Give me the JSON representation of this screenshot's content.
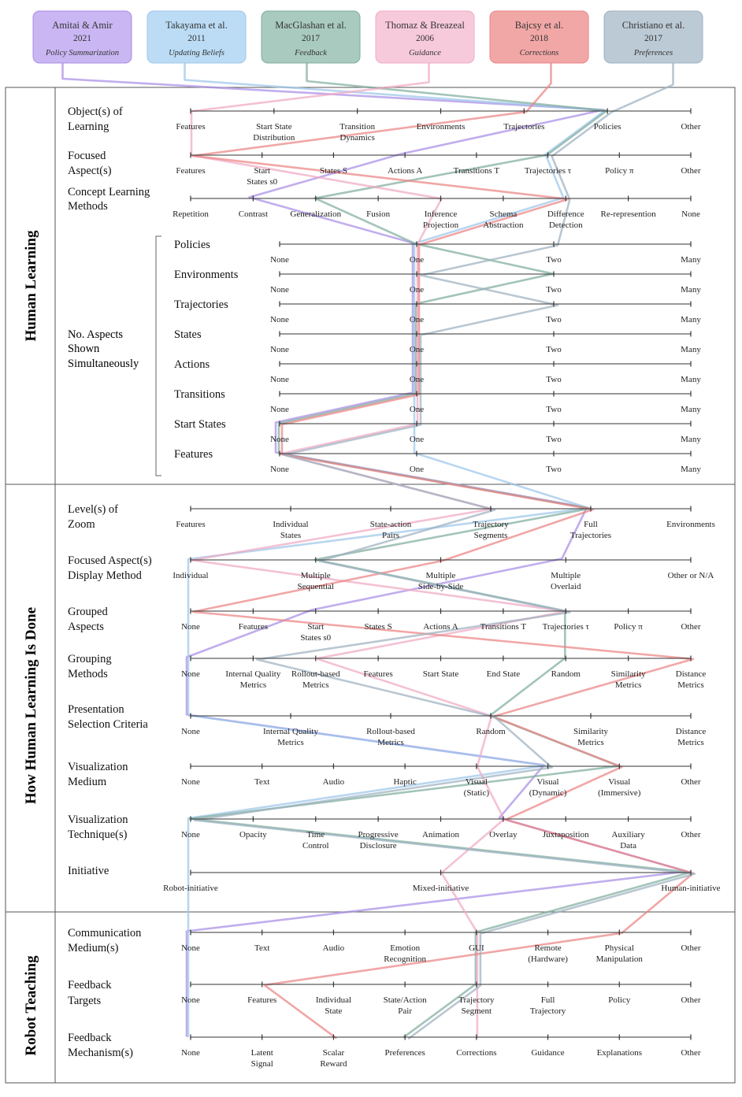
{
  "papers": [
    {
      "authors": "Amitai & Amir",
      "year": "2021",
      "tag": "Policy Summarization",
      "color": "#a98ee6",
      "card_color": "#c9b6f2"
    },
    {
      "authors": "Takayama et al.",
      "year": "2011",
      "tag": "Updating Beliefs",
      "color": "#9cc6ea",
      "card_color": "#bcdcf5"
    },
    {
      "authors": "MacGlashan et al.",
      "year": "2017",
      "tag": "Feedback",
      "color": "#7fad9e",
      "card_color": "#a9cabf"
    },
    {
      "authors": "Thomaz & Breazeal",
      "year": "2006",
      "tag": "Guidance",
      "color": "#f0a9c4",
      "card_color": "#f7cadb"
    },
    {
      "authors": "Bajcsy et al.",
      "year": "2018",
      "tag": "Corrections",
      "color": "#ec8383",
      "card_color": "#f2a7a7"
    },
    {
      "authors": "Christiano et al.",
      "year": "2017",
      "tag": "Preferences",
      "color": "#9eb2c1",
      "card_color": "#bccad5"
    }
  ],
  "sections": [
    {
      "title": "Human Learning"
    },
    {
      "title": "How Human Learning Is Done"
    },
    {
      "title": "Robot Teaching"
    }
  ],
  "bracket_label": [
    "No. Aspects",
    "Shown",
    "Simultaneously"
  ],
  "dimensions": [
    {
      "label": [
        "Object(s) of",
        "Learning"
      ],
      "values": [
        [
          "Features"
        ],
        [
          "Start State",
          "Distribution"
        ],
        [
          "Transition",
          "Dynamics"
        ],
        [
          "Environments"
        ],
        [
          "Trajectories"
        ],
        [
          "Policies"
        ],
        [
          "Other"
        ]
      ]
    },
    {
      "label": [
        "Focused",
        "Aspect(s)"
      ],
      "values": [
        [
          "Features"
        ],
        [
          "Start",
          "States s0"
        ],
        [
          "States S"
        ],
        [
          "Actions A"
        ],
        [
          "Transitions T"
        ],
        [
          "Trajectories τ"
        ],
        [
          "Policy π"
        ],
        [
          "Other"
        ]
      ]
    },
    {
      "label": [
        "Concept Learning",
        "Methods"
      ],
      "values": [
        [
          "Repetition"
        ],
        [
          "Contrast"
        ],
        [
          "Generalization"
        ],
        [
          "Fusion"
        ],
        [
          "Inference",
          "Projection"
        ],
        [
          "Schema",
          "Abstraction"
        ],
        [
          "Difference",
          "Detection"
        ],
        [
          "Re-represention"
        ],
        [
          "None"
        ]
      ]
    },
    {
      "label": [
        "Policies"
      ],
      "values": [
        [
          "None"
        ],
        [
          "One"
        ],
        [
          "Two"
        ],
        [
          "Many"
        ]
      ]
    },
    {
      "label": [
        "Environments"
      ],
      "values": [
        [
          "None"
        ],
        [
          "One"
        ],
        [
          "Two"
        ],
        [
          "Many"
        ]
      ]
    },
    {
      "label": [
        "Trajectories"
      ],
      "values": [
        [
          "None"
        ],
        [
          "One"
        ],
        [
          "Two"
        ],
        [
          "Many"
        ]
      ]
    },
    {
      "label": [
        "States"
      ],
      "values": [
        [
          "None"
        ],
        [
          "One"
        ],
        [
          "Two"
        ],
        [
          "Many"
        ]
      ]
    },
    {
      "label": [
        "Actions"
      ],
      "values": [
        [
          "None"
        ],
        [
          "One"
        ],
        [
          "Two"
        ],
        [
          "Many"
        ]
      ]
    },
    {
      "label": [
        "Transitions"
      ],
      "values": [
        [
          "None"
        ],
        [
          "One"
        ],
        [
          "Two"
        ],
        [
          "Many"
        ]
      ]
    },
    {
      "label": [
        "Start States"
      ],
      "values": [
        [
          "None"
        ],
        [
          "One"
        ],
        [
          "Two"
        ],
        [
          "Many"
        ]
      ]
    },
    {
      "label": [
        "Features"
      ],
      "values": [
        [
          "None"
        ],
        [
          "One"
        ],
        [
          "Two"
        ],
        [
          "Many"
        ]
      ]
    },
    {
      "label": [
        "Level(s) of",
        "Zoom"
      ],
      "values": [
        [
          "Features"
        ],
        [
          "Individual",
          "States"
        ],
        [
          "State-action",
          "Pairs"
        ],
        [
          "Trajectory",
          "Segments"
        ],
        [
          "Full",
          "Trajectories"
        ],
        [
          "Environments"
        ]
      ]
    },
    {
      "label": [
        "Focused Aspect(s)",
        "Display Method"
      ],
      "values": [
        [
          "Individual"
        ],
        [
          "Multiple",
          "Sequential"
        ],
        [
          "Multiple",
          "Side-by-Side"
        ],
        [
          "Multiple",
          "Overlaid"
        ],
        [
          "Other or N/A"
        ]
      ]
    },
    {
      "label": [
        "Grouped",
        "Aspects"
      ],
      "values": [
        [
          "None"
        ],
        [
          "Features"
        ],
        [
          "Start",
          "States s0"
        ],
        [
          "States S"
        ],
        [
          "Actions A"
        ],
        [
          "Transitions T"
        ],
        [
          "Trajectories τ"
        ],
        [
          "Policy π"
        ],
        [
          "Other"
        ]
      ]
    },
    {
      "label": [
        "Grouping",
        "Methods"
      ],
      "values": [
        [
          "None"
        ],
        [
          "Internal Quality",
          "Metrics"
        ],
        [
          "Rollout-based",
          "Metrics"
        ],
        [
          "Features"
        ],
        [
          "Start State"
        ],
        [
          "End State"
        ],
        [
          "Random"
        ],
        [
          "Similarity",
          "Metrics"
        ],
        [
          "Distance",
          "Metrics"
        ]
      ]
    },
    {
      "label": [
        "Presentation",
        "Selection Criteria"
      ],
      "values": [
        [
          "None"
        ],
        [
          "Internal Quality",
          "Metrics"
        ],
        [
          "Rollout-based",
          "Metrics"
        ],
        [
          "Random"
        ],
        [
          "Similarity",
          "Metrics"
        ],
        [
          "Distance",
          "Metrics"
        ]
      ]
    },
    {
      "label": [
        "Visualization",
        "Medium"
      ],
      "values": [
        [
          "None"
        ],
        [
          "Text"
        ],
        [
          "Audio"
        ],
        [
          "Haptic"
        ],
        [
          "Visual",
          "(Static)"
        ],
        [
          "Visual",
          "(Dynamic)"
        ],
        [
          "Visual",
          "(Immersive)"
        ],
        [
          "Other"
        ]
      ]
    },
    {
      "label": [
        "Visualization",
        "Technique(s)"
      ],
      "values": [
        [
          "None"
        ],
        [
          "Opacity"
        ],
        [
          "Time",
          "Control"
        ],
        [
          "Progressive",
          "Disclosure"
        ],
        [
          "Animation"
        ],
        [
          "Overlay"
        ],
        [
          "Juxtaposition"
        ],
        [
          "Auxiliary",
          "Data"
        ],
        [
          "Other"
        ]
      ]
    },
    {
      "label": [
        "Initiative"
      ],
      "values": [
        [
          "Robot-initiative"
        ],
        [
          "Mixed-initiative"
        ],
        [
          "Human-initiative"
        ]
      ]
    },
    {
      "label": [
        "Communication",
        "Medium(s)"
      ],
      "values": [
        [
          "None"
        ],
        [
          "Text"
        ],
        [
          "Audio"
        ],
        [
          "Emotion",
          "Recognition"
        ],
        [
          "GUI"
        ],
        [
          "Remote",
          "(Hardware)"
        ],
        [
          "Physical",
          "Manipulation"
        ],
        [
          "Other"
        ]
      ]
    },
    {
      "label": [
        "Feedback",
        "Targets"
      ],
      "values": [
        [
          "None"
        ],
        [
          "Features"
        ],
        [
          "Individual",
          "State"
        ],
        [
          "State/Action",
          "Pair"
        ],
        [
          "Trajectory",
          "Segment"
        ],
        [
          "Full",
          "Trajectory"
        ],
        [
          "Policy"
        ],
        [
          "Other"
        ]
      ]
    },
    {
      "label": [
        "Feedback",
        "Mechanism(s)"
      ],
      "values": [
        [
          "None"
        ],
        [
          "Latent",
          "Signal"
        ],
        [
          "Scalar",
          "Reward"
        ],
        [
          "Preferences"
        ],
        [
          "Corrections"
        ],
        [
          "Guidance"
        ],
        [
          "Explanations"
        ],
        [
          "Other"
        ]
      ]
    }
  ],
  "paths": [
    [
      5,
      3,
      1,
      1,
      1,
      1,
      1,
      1,
      1,
      0,
      0,
      4,
      3,
      2,
      0,
      0,
      5,
      5,
      2,
      0,
      0,
      0
    ],
    [
      5,
      5,
      6,
      1,
      1,
      1,
      1,
      1,
      1,
      1,
      1,
      4,
      0,
      0,
      0,
      0,
      5,
      0,
      0,
      0,
      0,
      0
    ],
    [
      5,
      5,
      2,
      1,
      2,
      1,
      1,
      1,
      1,
      0,
      0,
      4,
      1,
      6,
      6,
      3,
      6,
      0,
      2,
      4,
      4,
      3
    ],
    [
      0,
      0,
      4,
      1,
      1,
      1,
      1,
      1,
      1,
      1,
      0,
      3,
      0,
      6,
      2,
      3,
      4,
      5,
      1,
      4,
      4,
      4
    ],
    [
      4,
      0,
      6,
      1,
      1,
      1,
      1,
      1,
      1,
      0,
      0,
      4,
      2,
      0,
      8,
      3,
      6,
      5,
      2,
      6,
      1,
      2
    ],
    [
      5,
      5,
      6,
      2,
      1,
      2,
      1,
      1,
      1,
      1,
      0,
      3,
      1,
      6,
      1,
      3,
      5,
      0,
      2,
      4,
      4,
      3
    ]
  ]
}
